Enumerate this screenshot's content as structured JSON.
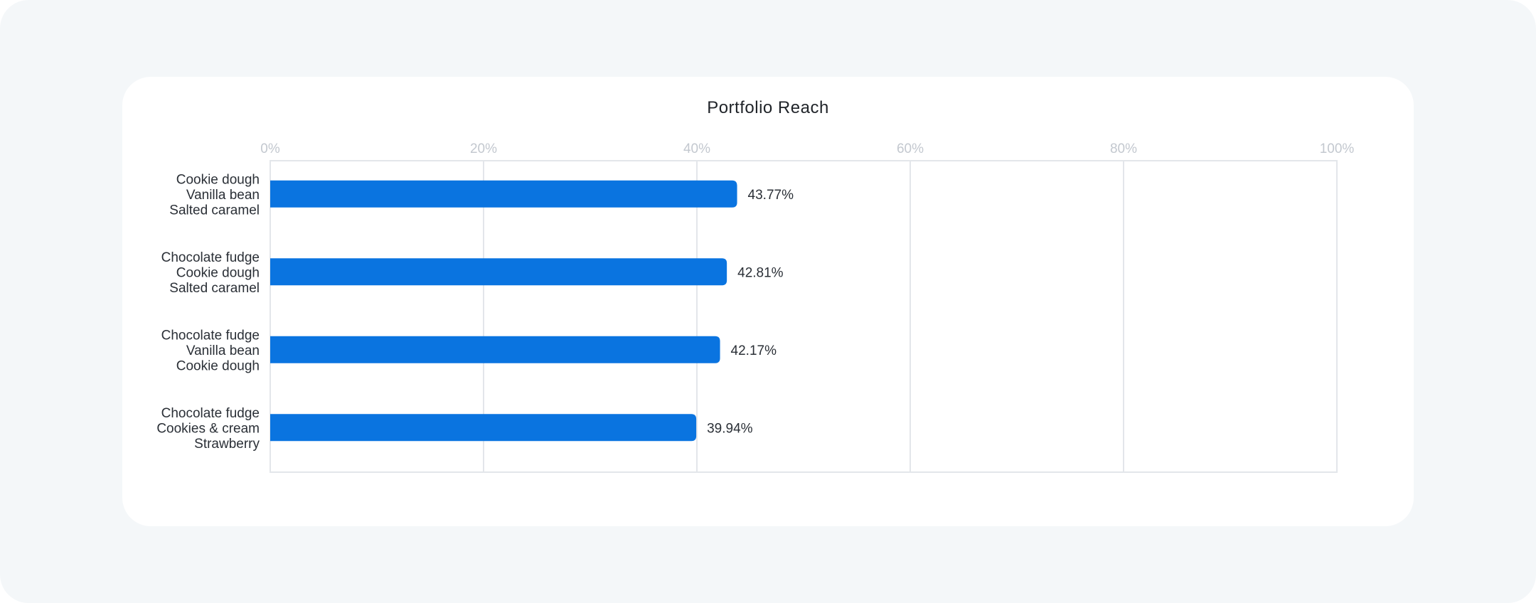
{
  "chart_data": {
    "type": "bar",
    "orientation": "horizontal",
    "title": "Portfolio Reach",
    "xlabel": "",
    "ylabel": "",
    "xlim": [
      0,
      100
    ],
    "x_ticks": [
      0,
      20,
      40,
      60,
      80,
      100
    ],
    "x_tick_labels": [
      "0%",
      "20%",
      "40%",
      "60%",
      "80%",
      "100%"
    ],
    "x_axis_position": "top",
    "grid": true,
    "categories": [
      [
        "Cookie dough",
        "Vanilla bean",
        "Salted caramel"
      ],
      [
        "Chocolate fudge",
        "Cookie dough",
        "Salted caramel"
      ],
      [
        "Chocolate fudge",
        "Vanilla bean",
        "Cookie dough"
      ],
      [
        "Chocolate fudge",
        "Cookies & cream",
        "Strawberry"
      ]
    ],
    "values": [
      43.77,
      42.81,
      42.17,
      39.94
    ],
    "value_labels": [
      "43.77%",
      "42.81%",
      "42.17%",
      "39.94%"
    ],
    "bar_color": "#0a74e0",
    "grid_color": "#e3e6ea"
  }
}
